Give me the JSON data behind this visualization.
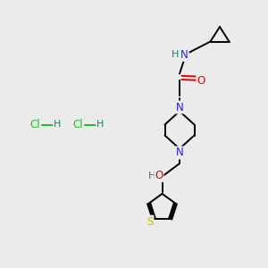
{
  "bg_color": "#ebebeb",
  "atom_colors": {
    "C": "#000000",
    "N": "#2222dd",
    "O": "#dd0000",
    "S": "#ccbb00",
    "H": "#008888",
    "Cl": "#22bb22"
  },
  "bond_color": "#000000",
  "figsize": [
    3.0,
    3.0
  ],
  "dpi": 100,
  "lw": 1.4,
  "fs": 8.5
}
